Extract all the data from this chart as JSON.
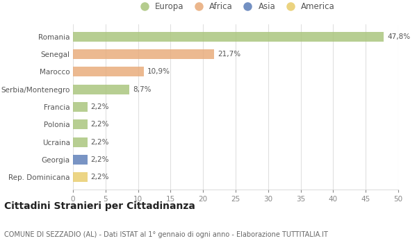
{
  "countries": [
    "Romania",
    "Senegal",
    "Marocco",
    "Serbia/Montenegro",
    "Francia",
    "Polonia",
    "Ucraina",
    "Georgia",
    "Rep. Dominicana"
  ],
  "values": [
    47.8,
    21.7,
    10.9,
    8.7,
    2.2,
    2.2,
    2.2,
    2.2,
    2.2
  ],
  "labels": [
    "47,8%",
    "21,7%",
    "10,9%",
    "8,7%",
    "2,2%",
    "2,2%",
    "2,2%",
    "2,2%",
    "2,2%"
  ],
  "continents": [
    "Europa",
    "Africa",
    "Africa",
    "Europa",
    "Europa",
    "Europa",
    "Europa",
    "Asia",
    "America"
  ],
  "colors": {
    "Europa": "#a8c47a",
    "Africa": "#e8aa78",
    "Asia": "#5b7db8",
    "America": "#e8cc6a"
  },
  "legend_order": [
    "Europa",
    "Africa",
    "Asia",
    "America"
  ],
  "title": "Cittadini Stranieri per Cittadinanza",
  "subtitle": "COMUNE DI SEZZADIO (AL) - Dati ISTAT al 1° gennaio di ogni anno - Elaborazione TUTTITALIA.IT",
  "xlim": [
    0,
    50
  ],
  "xticks": [
    0,
    5,
    10,
    15,
    20,
    25,
    30,
    35,
    40,
    45,
    50
  ],
  "background_color": "#ffffff",
  "plot_bg_color": "#ffffff",
  "grid_color": "#e0e0e0",
  "bar_height": 0.55,
  "title_fontsize": 10,
  "subtitle_fontsize": 7,
  "label_fontsize": 7.5,
  "tick_fontsize": 7.5,
  "legend_fontsize": 8.5
}
